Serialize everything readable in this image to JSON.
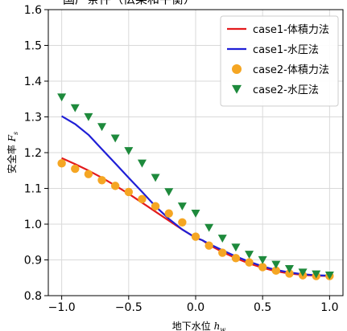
{
  "chart_data": {
    "type": "line",
    "title": "",
    "xlabel": "地下水位",
    "xlabel_symbol": "h",
    "xlabel_subscript": "w",
    "ylabel": "安全率",
    "ylabel_symbol": "F",
    "ylabel_subscript": "s",
    "xlim": [
      -1.1,
      1.1
    ],
    "ylim": [
      0.8,
      1.6
    ],
    "xticks": [
      -1.0,
      -0.5,
      0.0,
      0.5,
      1.0
    ],
    "xtick_labels": [
      "−1.0",
      "−0.5",
      "0.0",
      "0.5",
      "1.0"
    ],
    "yticks": [
      0.8,
      0.9,
      1.0,
      1.1,
      1.2,
      1.3,
      1.4,
      1.5,
      1.6
    ],
    "ytick_labels": [
      "0.8",
      "0.9",
      "1.0",
      "1.1",
      "1.2",
      "1.3",
      "1.4",
      "1.5",
      "1.6"
    ],
    "grid": true,
    "legend_position": "top-right",
    "series": [
      {
        "name": "case1-体積力法",
        "kind": "line",
        "color": "#e31a1c",
        "x": [
          -1.0,
          -0.9,
          -0.8,
          -0.7,
          -0.6,
          -0.5,
          -0.4,
          -0.3,
          -0.2,
          -0.1,
          0.0,
          0.05,
          0.1,
          0.2,
          0.3,
          0.4,
          0.5,
          0.6,
          0.7,
          0.8,
          0.9,
          1.0
        ],
        "y": [
          1.185,
          1.168,
          1.15,
          1.13,
          1.108,
          1.085,
          1.06,
          1.035,
          1.01,
          0.985,
          0.962,
          0.955,
          0.942,
          0.922,
          0.905,
          0.89,
          0.878,
          0.868,
          0.862,
          0.858,
          0.856,
          0.855
        ]
      },
      {
        "name": "case1-水圧法",
        "kind": "line",
        "color": "#1f1fd6",
        "x": [
          -1.0,
          -0.9,
          -0.8,
          -0.7,
          -0.6,
          -0.5,
          -0.4,
          -0.3,
          -0.2,
          -0.1,
          0.0,
          0.05,
          0.1,
          0.2,
          0.3,
          0.4,
          0.5,
          0.6,
          0.7,
          0.8,
          0.9,
          1.0
        ],
        "y": [
          1.302,
          1.28,
          1.25,
          1.21,
          1.17,
          1.13,
          1.09,
          1.05,
          1.015,
          0.985,
          0.962,
          0.955,
          0.945,
          0.927,
          0.91,
          0.895,
          0.882,
          0.872,
          0.865,
          0.86,
          0.857,
          0.856
        ]
      },
      {
        "name": "case2-体積力法",
        "kind": "marker",
        "marker": "circle",
        "color": "#f5a623",
        "x": [
          -1.0,
          -0.9,
          -0.8,
          -0.7,
          -0.6,
          -0.5,
          -0.4,
          -0.3,
          -0.2,
          -0.1,
          0.0,
          0.1,
          0.2,
          0.3,
          0.4,
          0.5,
          0.6,
          0.7,
          0.8,
          0.9,
          1.0
        ],
        "y": [
          1.17,
          1.155,
          1.14,
          1.123,
          1.107,
          1.09,
          1.07,
          1.05,
          1.03,
          1.005,
          0.965,
          0.94,
          0.92,
          0.905,
          0.893,
          0.88,
          0.87,
          0.862,
          0.857,
          0.855,
          0.855
        ]
      },
      {
        "name": "case2-水圧法",
        "kind": "marker",
        "marker": "triangle-down",
        "color": "#1e8a3c",
        "x": [
          -1.0,
          -0.9,
          -0.8,
          -0.7,
          -0.6,
          -0.5,
          -0.4,
          -0.3,
          -0.2,
          -0.1,
          0.0,
          0.1,
          0.2,
          0.3,
          0.4,
          0.5,
          0.6,
          0.7,
          0.8,
          0.9,
          1.0
        ],
        "y": [
          1.355,
          1.325,
          1.3,
          1.272,
          1.24,
          1.205,
          1.17,
          1.13,
          1.09,
          1.05,
          1.03,
          0.99,
          0.96,
          0.935,
          0.915,
          0.9,
          0.887,
          0.875,
          0.865,
          0.86,
          0.857
        ]
      }
    ]
  }
}
